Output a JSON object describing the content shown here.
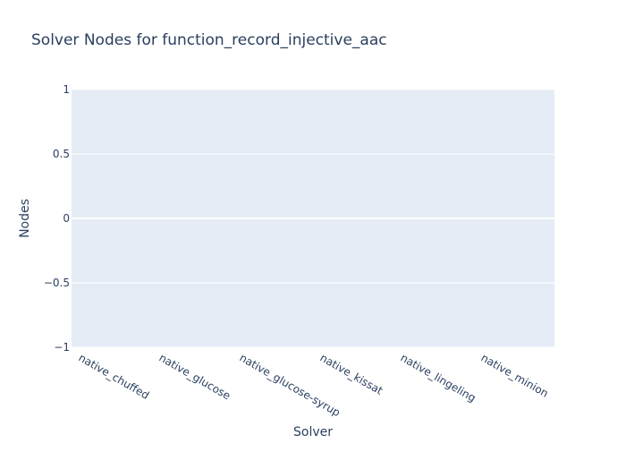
{
  "chart_data": {
    "type": "bar",
    "title": "Solver Nodes for function_record_injective_aac",
    "xlabel": "Solver",
    "ylabel": "Nodes",
    "categories": [
      "native_chuffed",
      "native_glucose",
      "native_glucose-syrup",
      "native_kissat",
      "native_lingeling",
      "native_minion"
    ],
    "values": [
      0,
      0,
      0,
      0,
      0,
      0
    ],
    "ylim": [
      -1,
      1
    ],
    "yticks": [
      {
        "value": 1,
        "label": "1"
      },
      {
        "value": 0.5,
        "label": "0.5"
      },
      {
        "value": 0,
        "label": "0"
      },
      {
        "value": -0.5,
        "label": "−0.5"
      },
      {
        "value": -1,
        "label": "−1"
      }
    ],
    "grid": true,
    "colors": {
      "plot_bg": "#e5ecf6",
      "grid": "#ffffff",
      "bar": "#636efa",
      "text": "#2a3f5f"
    }
  }
}
